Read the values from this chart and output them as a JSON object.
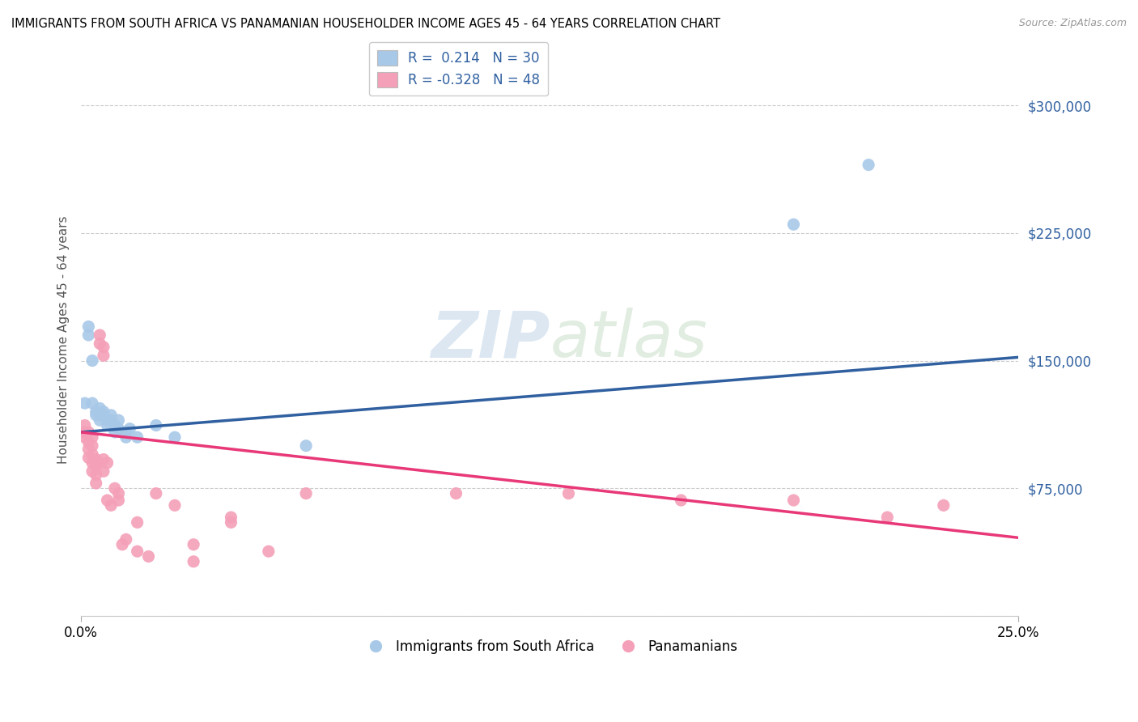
{
  "title": "IMMIGRANTS FROM SOUTH AFRICA VS PANAMANIAN HOUSEHOLDER INCOME AGES 45 - 64 YEARS CORRELATION CHART",
  "source": "Source: ZipAtlas.com",
  "ylabel": "Householder Income Ages 45 - 64 years",
  "xlim": [
    0.0,
    0.25
  ],
  "ylim": [
    0,
    325000
  ],
  "yticks": [
    0,
    75000,
    150000,
    225000,
    300000
  ],
  "ytick_labels": [
    "",
    "$75,000",
    "$150,000",
    "$225,000",
    "$300,000"
  ],
  "xticks": [
    0.0,
    0.25
  ],
  "xtick_labels": [
    "0.0%",
    "25.0%"
  ],
  "background_color": "#ffffff",
  "grid_color": "#cccccc",
  "watermark_zip": "ZIP",
  "watermark_atlas": "atlas",
  "legend_R_blue": "0.214",
  "legend_N_blue": "30",
  "legend_R_pink": "-0.328",
  "legend_N_pink": "48",
  "blue_color": "#a8c8e8",
  "pink_color": "#f4a0b8",
  "blue_line_color": "#3060a0",
  "pink_line_color": "#e83878",
  "blue_line_x0": 0.0,
  "blue_line_y0": 108000,
  "blue_line_x1": 0.25,
  "blue_line_y1": 152000,
  "pink_line_x0": 0.0,
  "pink_line_y0": 108000,
  "pink_line_x1": 0.25,
  "pink_line_y1": 46000,
  "blue_scatter": [
    [
      0.001,
      125000
    ],
    [
      0.002,
      165000
    ],
    [
      0.002,
      170000
    ],
    [
      0.003,
      150000
    ],
    [
      0.003,
      125000
    ],
    [
      0.004,
      120000
    ],
    [
      0.004,
      118000
    ],
    [
      0.005,
      122000
    ],
    [
      0.005,
      118000
    ],
    [
      0.005,
      115000
    ],
    [
      0.006,
      120000
    ],
    [
      0.006,
      118000
    ],
    [
      0.007,
      115000
    ],
    [
      0.007,
      112000
    ],
    [
      0.008,
      118000
    ],
    [
      0.008,
      115000
    ],
    [
      0.009,
      112000
    ],
    [
      0.009,
      108000
    ],
    [
      0.01,
      115000
    ],
    [
      0.01,
      110000
    ],
    [
      0.011,
      108000
    ],
    [
      0.012,
      108000
    ],
    [
      0.012,
      105000
    ],
    [
      0.013,
      110000
    ],
    [
      0.015,
      105000
    ],
    [
      0.02,
      112000
    ],
    [
      0.025,
      105000
    ],
    [
      0.06,
      100000
    ],
    [
      0.19,
      230000
    ],
    [
      0.21,
      265000
    ]
  ],
  "pink_scatter": [
    [
      0.001,
      112000
    ],
    [
      0.001,
      108000
    ],
    [
      0.001,
      105000
    ],
    [
      0.002,
      108000
    ],
    [
      0.002,
      102000
    ],
    [
      0.002,
      98000
    ],
    [
      0.002,
      93000
    ],
    [
      0.003,
      105000
    ],
    [
      0.003,
      100000
    ],
    [
      0.003,
      95000
    ],
    [
      0.003,
      90000
    ],
    [
      0.003,
      85000
    ],
    [
      0.004,
      92000
    ],
    [
      0.004,
      88000
    ],
    [
      0.004,
      83000
    ],
    [
      0.004,
      78000
    ],
    [
      0.005,
      165000
    ],
    [
      0.005,
      160000
    ],
    [
      0.005,
      90000
    ],
    [
      0.006,
      158000
    ],
    [
      0.006,
      153000
    ],
    [
      0.006,
      92000
    ],
    [
      0.006,
      85000
    ],
    [
      0.007,
      90000
    ],
    [
      0.007,
      68000
    ],
    [
      0.008,
      65000
    ],
    [
      0.009,
      75000
    ],
    [
      0.01,
      72000
    ],
    [
      0.01,
      68000
    ],
    [
      0.011,
      42000
    ],
    [
      0.012,
      45000
    ],
    [
      0.015,
      55000
    ],
    [
      0.015,
      38000
    ],
    [
      0.018,
      35000
    ],
    [
      0.02,
      72000
    ],
    [
      0.025,
      65000
    ],
    [
      0.03,
      42000
    ],
    [
      0.03,
      32000
    ],
    [
      0.04,
      58000
    ],
    [
      0.04,
      55000
    ],
    [
      0.05,
      38000
    ],
    [
      0.06,
      72000
    ],
    [
      0.1,
      72000
    ],
    [
      0.13,
      72000
    ],
    [
      0.16,
      68000
    ],
    [
      0.19,
      68000
    ],
    [
      0.215,
      58000
    ],
    [
      0.23,
      65000
    ]
  ]
}
